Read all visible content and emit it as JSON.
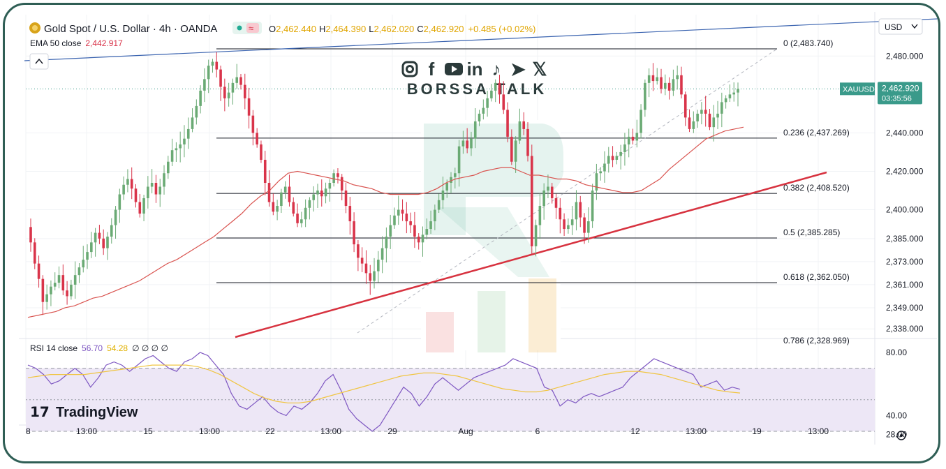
{
  "header": {
    "symbol_title": "Gold Spot / U.S. Dollar · 4h · OANDA",
    "o_label": "O",
    "o_value": "2,462.440",
    "h_label": "H",
    "h_value": "2,464.390",
    "l_label": "L",
    "l_value": "2,462.020",
    "c_label": "C",
    "c_value": "2,462.920",
    "change": "+0.485 (+0.02%)",
    "ema_label": "EMA 50 close",
    "ema_value": "2,442.917",
    "collapse_icon": "chevron-up-icon",
    "status_icon": "market-open-dot-icon",
    "compare_icon": "approx-icon"
  },
  "currency_button": "USD",
  "currency_icon": "chevron-down-icon",
  "symbol_tag": "XAUUSD",
  "price_tag": {
    "price": "2,462.920",
    "countdown": "03:35:56"
  },
  "watermark": {
    "brand": "BORSSA TALK",
    "social_icons": [
      "instagram-icon",
      "facebook-icon",
      "youtube-icon",
      "linkedin-icon",
      "tiktok-icon",
      "telegram-icon",
      "x-icon"
    ]
  },
  "tradingview_logo": "TradingView",
  "rsi": {
    "label": "RSI 14 close",
    "value": "56.70",
    "ma_value": "54.28",
    "placeholders": "∅ ∅ ∅ ∅",
    "axis_labels": [
      "80.00",
      "40.00",
      "28.00"
    ]
  },
  "settings_icon": "settings-icon",
  "colors": {
    "up": "#6aaa74",
    "down": "#d9344a",
    "ema": "#d9534f",
    "trendline_red": "#d7323f",
    "trendline_blue": "#3b64b0",
    "rsi_line": "#7e57c2",
    "rsi_ma": "#f0c542",
    "rsi_band": "#ede7f6",
    "price_tag": "#3a9a8a",
    "frame": "#2f5e55"
  },
  "chart_data": {
    "type": "candlestick",
    "title": "Gold Spot / U.S. Dollar · 4h · OANDA",
    "price_axis_labels": [
      "2,480.000",
      "2,440.000",
      "2,420.000",
      "2,400.000",
      "2,385.000",
      "2,373.000",
      "2,361.000",
      "2,349.000",
      "2,338.000"
    ],
    "price_axis_values": [
      2480,
      2440,
      2420,
      2400,
      2385,
      2373,
      2361,
      2349,
      2338
    ],
    "time_axis_labels": [
      "8",
      "13:00",
      "15",
      "13:00",
      "22",
      "13:00",
      "29",
      "Aug",
      "6",
      "12",
      "13:00",
      "19",
      "13:00"
    ],
    "ylim": [
      2330,
      2492
    ],
    "fibonacci": [
      {
        "level": "0",
        "price": 2483.74,
        "label": "0 (2,483.740)"
      },
      {
        "level": "0.236",
        "price": 2437.269,
        "label": "0.236 (2,437.269)"
      },
      {
        "level": "0.382",
        "price": 2408.52,
        "label": "0.382 (2,408.520)"
      },
      {
        "level": "0.5",
        "price": 2385.285,
        "label": "0.5 (2,385.285)"
      },
      {
        "level": "0.618",
        "price": 2362.05,
        "label": "0.618 (2,362.050)"
      },
      {
        "level": "0.786",
        "price": 2328.969,
        "label": "0.786 (2,328.969)"
      }
    ],
    "last_close": 2462.92,
    "close_series": [
      2383,
      2372,
      2364,
      2352,
      2356,
      2360,
      2362,
      2366,
      2358,
      2355,
      2361,
      2366,
      2370,
      2374,
      2378,
      2383,
      2388,
      2385,
      2380,
      2386,
      2392,
      2400,
      2408,
      2413,
      2416,
      2411,
      2404,
      2398,
      2406,
      2412,
      2414,
      2408,
      2412,
      2419,
      2425,
      2431,
      2432,
      2434,
      2437,
      2442,
      2448,
      2454,
      2462,
      2468,
      2475,
      2477,
      2473,
      2464,
      2458,
      2461,
      2466,
      2469,
      2465,
      2458,
      2449,
      2440,
      2434,
      2426,
      2414,
      2404,
      2399,
      2402,
      2409,
      2412,
      2404,
      2398,
      2393,
      2395,
      2401,
      2405,
      2408,
      2410,
      2407,
      2411,
      2414,
      2419,
      2417,
      2410,
      2402,
      2394,
      2382,
      2375,
      2372,
      2367,
      2363,
      2368,
      2374,
      2380,
      2386,
      2392,
      2397,
      2400,
      2398,
      2394,
      2392,
      2386,
      2383,
      2387,
      2390,
      2394,
      2400,
      2405,
      2410,
      2414,
      2417,
      2419,
      2433,
      2436,
      2432,
      2437,
      2446,
      2450,
      2453,
      2458,
      2462,
      2466,
      2460,
      2452,
      2438,
      2425,
      2436,
      2446,
      2442,
      2428,
      2381,
      2392,
      2402,
      2410,
      2412,
      2406,
      2401,
      2395,
      2390,
      2392,
      2395,
      2404,
      2396,
      2388,
      2394,
      2410,
      2419,
      2420,
      2424,
      2428,
      2426,
      2428,
      2430,
      2434,
      2438,
      2436,
      2440,
      2452,
      2466,
      2470,
      2467,
      2469,
      2463,
      2466,
      2462,
      2468,
      2470,
      2460,
      2448,
      2442,
      2446,
      2450,
      2452,
      2450,
      2443,
      2448,
      2450,
      2456,
      2458,
      2460,
      2461,
      2462.92
    ],
    "ema50_values": [
      2344,
      2345,
      2346,
      2347,
      2349,
      2350,
      2352,
      2354,
      2355,
      2357,
      2359,
      2361,
      2363,
      2366,
      2369,
      2372,
      2374,
      2377,
      2380,
      2383,
      2386,
      2390,
      2394,
      2398,
      2403,
      2407,
      2410,
      2415,
      2419,
      2420,
      2419,
      2418,
      2417,
      2416,
      2415,
      2413,
      2412,
      2411,
      2409,
      2408,
      2408,
      2408,
      2408,
      2409,
      2411,
      2414,
      2416,
      2417,
      2418,
      2420,
      2421,
      2422,
      2422,
      2420,
      2418,
      2418,
      2417,
      2416,
      2416,
      2415,
      2413,
      2412,
      2411,
      2410,
      2409,
      2409,
      2410,
      2413,
      2416,
      2421,
      2425,
      2429,
      2433,
      2437,
      2439,
      2441,
      2442,
      2443
    ],
    "rsi_values": [
      72,
      70,
      66,
      60,
      62,
      66,
      70,
      66,
      58,
      64,
      72,
      74,
      72,
      68,
      72,
      76,
      78,
      74,
      70,
      68,
      74,
      76,
      80,
      78,
      72,
      66,
      54,
      46,
      44,
      48,
      52,
      46,
      42,
      40,
      46,
      44,
      48,
      54,
      62,
      66,
      56,
      44,
      38,
      34,
      30,
      34,
      42,
      50,
      58,
      54,
      46,
      52,
      60,
      64,
      60,
      56,
      60,
      64,
      66,
      68,
      70,
      72,
      76,
      74,
      72,
      70,
      58,
      56,
      46,
      50,
      48,
      52,
      54,
      52,
      54,
      56,
      58,
      64,
      68,
      72,
      76,
      74,
      72,
      70,
      68,
      66,
      58,
      60,
      62,
      56,
      58,
      56.7
    ],
    "rsi_ma_values": [
      64,
      65,
      66,
      66,
      66,
      66,
      67,
      68,
      69,
      70,
      71,
      72,
      72,
      72,
      72,
      71,
      69,
      66,
      62,
      58,
      54,
      51,
      49,
      48,
      48,
      49,
      51,
      53,
      55,
      57,
      59,
      61,
      63,
      65,
      66,
      67,
      67,
      66,
      65,
      63,
      61,
      59,
      57,
      56,
      55,
      55,
      56,
      58,
      60,
      62,
      64,
      66,
      67,
      68,
      68,
      67,
      66,
      64,
      62,
      60,
      58,
      56,
      55,
      54.28
    ],
    "rsi_levels": [
      70,
      50,
      30
    ],
    "rsi_ylim": [
      25,
      85
    ]
  }
}
